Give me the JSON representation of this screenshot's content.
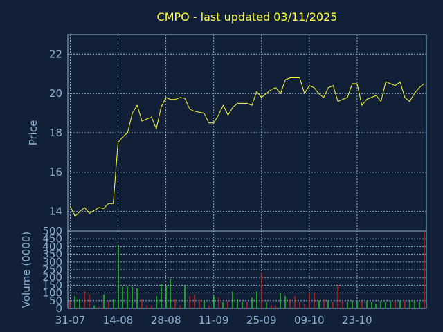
{
  "chart_data": {
    "type": "line",
    "title": "CMPO - last updated 03/11/2025",
    "colors": {
      "background": "#112036",
      "frame": "#8fb2d2",
      "grid": "#8fb2d2",
      "price_line": "#ffff3c",
      "volume_up": "#22dd22",
      "volume_down": "#dd2222"
    },
    "x_tick_labels": [
      "31-07",
      "14-08",
      "28-08",
      "11-09",
      "25-09",
      "09-10",
      "23-10"
    ],
    "x_tick_indices": [
      0,
      10,
      20,
      30,
      40,
      50,
      60
    ],
    "price_panel": {
      "ylabel": "Price",
      "ylim": [
        13,
        23
      ],
      "yticks": [
        14,
        16,
        18,
        20,
        22
      ],
      "grid": true,
      "values": [
        14.25,
        13.75,
        14.0,
        14.2,
        13.9,
        14.05,
        14.2,
        14.15,
        14.4,
        14.4,
        17.5,
        17.8,
        18.0,
        19.0,
        19.4,
        18.6,
        18.7,
        18.8,
        18.2,
        19.3,
        19.8,
        19.7,
        19.7,
        19.8,
        19.75,
        19.2,
        19.1,
        19.05,
        19.0,
        18.5,
        18.5,
        18.9,
        19.4,
        18.9,
        19.3,
        19.5,
        19.5,
        19.5,
        19.4,
        20.1,
        19.8,
        20.0,
        20.2,
        20.3,
        20.0,
        20.7,
        20.8,
        20.8,
        20.8,
        20.0,
        20.4,
        20.3,
        20.0,
        19.8,
        20.3,
        20.4,
        19.6,
        19.7,
        19.8,
        20.5,
        20.5,
        19.4,
        19.7,
        19.8,
        19.9,
        19.6,
        20.6,
        20.5,
        20.4,
        20.6,
        19.8,
        19.6,
        20.0,
        20.3,
        20.5
      ]
    },
    "volume_panel": {
      "ylabel": "Volume (0000)",
      "ylim": [
        0,
        500
      ],
      "yticks": [
        0,
        50,
        100,
        150,
        200,
        250,
        300,
        350,
        400,
        450,
        500
      ],
      "grid": true,
      "values": [
        50,
        80,
        60,
        110,
        90,
        20,
        10,
        90,
        50,
        60,
        410,
        140,
        140,
        140,
        130,
        60,
        20,
        20,
        80,
        160,
        150,
        190,
        60,
        20,
        150,
        80,
        90,
        60,
        50,
        20,
        80,
        70,
        40,
        50,
        110,
        60,
        40,
        40,
        70,
        110,
        230,
        40,
        20,
        20,
        100,
        80,
        60,
        80,
        40,
        30,
        100,
        100,
        50,
        60,
        50,
        40,
        150,
        50,
        40,
        50,
        50,
        50,
        50,
        40,
        30,
        50,
        40,
        50,
        50,
        50,
        50,
        50,
        50,
        40,
        490
      ],
      "directions": [
        "down",
        "up",
        "up",
        "down",
        "down",
        "up",
        "down",
        "up",
        "down",
        "up",
        "up",
        "up",
        "up",
        "up",
        "up",
        "down",
        "down",
        "down",
        "up",
        "up",
        "up",
        "up",
        "down",
        "down",
        "up",
        "down",
        "down",
        "down",
        "up",
        "down",
        "up",
        "down",
        "up",
        "down",
        "up",
        "up",
        "up",
        "down",
        "up",
        "up",
        "down",
        "up",
        "down",
        "down",
        "up",
        "up",
        "down",
        "down",
        "down",
        "down",
        "down",
        "down",
        "up",
        "down",
        "up",
        "down",
        "down",
        "down",
        "up",
        "up",
        "up",
        "down",
        "up",
        "up",
        "up",
        "up",
        "up",
        "up",
        "down",
        "up",
        "down",
        "up",
        "up",
        "up",
        "down"
      ]
    }
  }
}
